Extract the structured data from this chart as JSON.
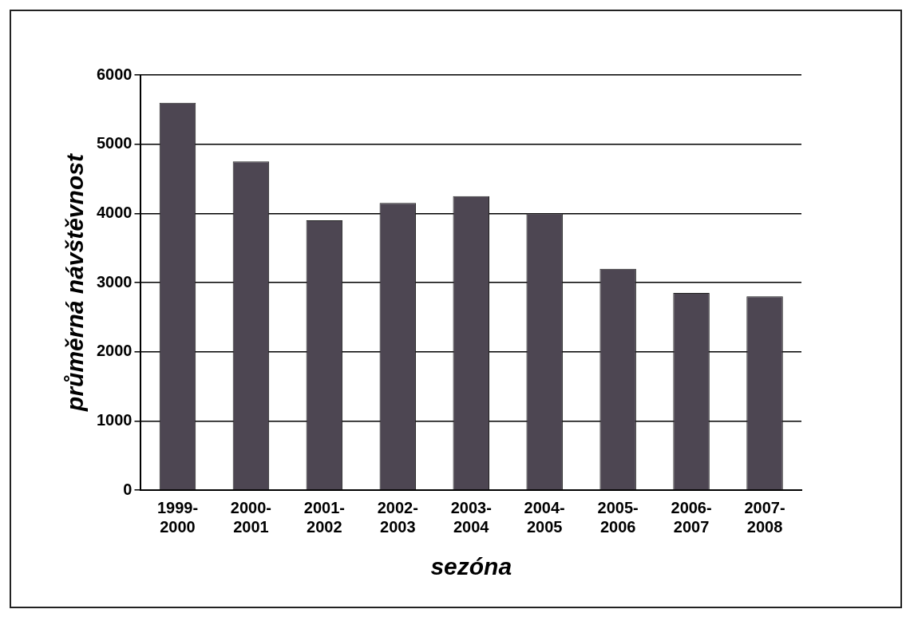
{
  "chart_data": {
    "type": "bar",
    "xlabel": "sezóna",
    "ylabel": "průměrná návštěvnost",
    "categories": [
      "1999-\n2000",
      "2000-\n2001",
      "2001-\n2002",
      "2002-\n2003",
      "2003-\n2004",
      "2004-\n2005",
      "2005-\n2006",
      "2006-\n2007",
      "2007-\n2008"
    ],
    "values": [
      5600,
      4750,
      3900,
      4150,
      4250,
      4000,
      3200,
      2850,
      2800
    ],
    "color": "#4d4652",
    "ylim": [
      0,
      6000
    ],
    "yticks": [
      0,
      1000,
      2000,
      3000,
      4000,
      5000,
      6000
    ],
    "grid": "y",
    "legend": false
  }
}
